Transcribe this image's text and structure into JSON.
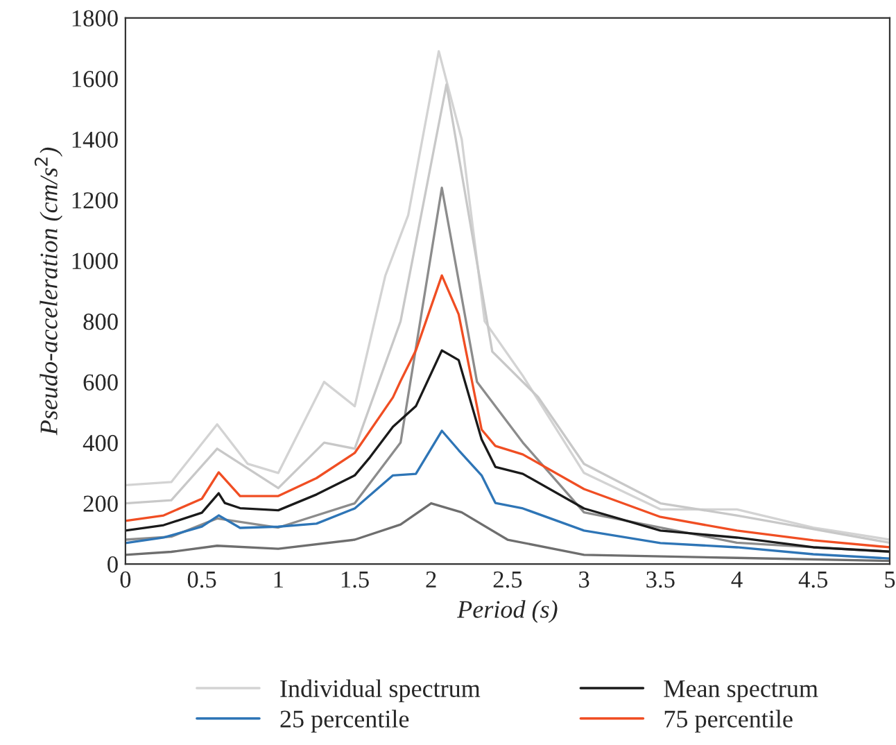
{
  "chart_data": {
    "type": "line",
    "xlabel": "Period (s)",
    "ylabel": "Pseudo-acceleration (cm/s$^{2}$)",
    "xlim": [
      0,
      5
    ],
    "xticks": [
      0,
      0.5,
      1,
      1.5,
      2,
      2.5,
      3,
      3.5,
      4,
      4.5,
      5
    ],
    "ylim": [
      0,
      1800
    ],
    "yticks": [
      0,
      200,
      400,
      600,
      800,
      1000,
      1200,
      1400,
      1600,
      1800
    ],
    "grid": false,
    "legend": "bottom",
    "marker": "none",
    "line_style": "solid",
    "series": [
      {
        "name": "Individual spectrum",
        "color": "#d3d3d3",
        "x": [
          0,
          0.3,
          0.6,
          0.8,
          1.0,
          1.3,
          1.5,
          1.7,
          1.85,
          2.05,
          2.2,
          2.35,
          2.6,
          3,
          3.5,
          4,
          4.5,
          5
        ],
        "values": [
          260,
          270,
          460,
          330,
          300,
          600,
          520,
          950,
          1150,
          1690,
          1400,
          800,
          620,
          300,
          180,
          180,
          120,
          80
        ]
      },
      {
        "color": "#c8c8c8",
        "x": [
          0,
          0.3,
          0.6,
          1,
          1.3,
          1.5,
          1.8,
          2.1,
          2.4,
          2.7,
          3,
          3.5,
          4,
          5
        ],
        "values": [
          200,
          210,
          380,
          250,
          400,
          380,
          800,
          1580,
          700,
          550,
          330,
          200,
          160,
          70
        ]
      },
      {
        "color": "#8c8c8c",
        "x": [
          0,
          0.3,
          0.6,
          1,
          1.5,
          1.8,
          2.07,
          2.3,
          2.6,
          3,
          4,
          5
        ],
        "values": [
          80,
          90,
          150,
          120,
          200,
          400,
          1240,
          600,
          400,
          170,
          70,
          40
        ]
      },
      {
        "color": "#6e6e6e",
        "x": [
          0,
          0.3,
          0.6,
          1,
          1.5,
          1.8,
          2.0,
          2.2,
          2.5,
          3,
          4,
          5
        ],
        "values": [
          30,
          40,
          60,
          50,
          80,
          130,
          200,
          170,
          80,
          30,
          20,
          10
        ]
      },
      {
        "name": "25 percentile",
        "color": "#2e75b6",
        "x": [
          0,
          0.25,
          0.5,
          0.61,
          0.75,
          1.0,
          1.25,
          1.5,
          1.75,
          1.9,
          2.07,
          2.18,
          2.33,
          2.42,
          2.6,
          3,
          3.5,
          4,
          4.5,
          5
        ],
        "values": [
          69,
          87,
          123,
          160,
          119,
          123,
          133,
          183,
          292,
          297,
          439,
          375,
          292,
          201,
          183,
          110,
          69,
          55,
          32,
          18
        ]
      },
      {
        "name": "Mean spectrum",
        "color": "#1a1a1a",
        "x": [
          0,
          0.25,
          0.5,
          0.61,
          0.65,
          0.75,
          1.0,
          1.25,
          1.5,
          1.6,
          1.75,
          1.9,
          2.07,
          2.18,
          2.33,
          2.42,
          2.6,
          3,
          3.5,
          4,
          4.5,
          5
        ],
        "values": [
          110,
          128,
          169,
          233,
          201,
          184,
          177,
          229,
          292,
          352,
          452,
          520,
          704,
          672,
          411,
          320,
          297,
          183,
          110,
          87,
          55,
          41
        ]
      },
      {
        "name": "75 percentile",
        "color": "#f04e23",
        "x": [
          0,
          0.25,
          0.5,
          0.61,
          0.75,
          1.0,
          1.25,
          1.5,
          1.75,
          1.8,
          1.9,
          2.07,
          2.18,
          2.33,
          2.42,
          2.6,
          3,
          3.5,
          4,
          4.5,
          5
        ],
        "values": [
          142,
          160,
          215,
          302,
          224,
          224,
          283,
          366,
          549,
          603,
          704,
          951,
          823,
          443,
          389,
          361,
          247,
          155,
          110,
          78,
          55
        ]
      }
    ]
  }
}
